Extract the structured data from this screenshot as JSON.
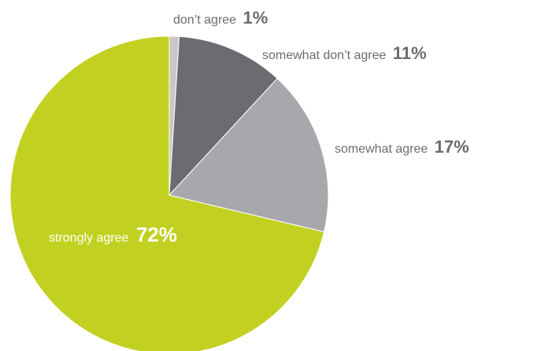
{
  "chart_data": {
    "type": "pie",
    "title": "",
    "slices": [
      {
        "label": "don’t agree",
        "percent_label": "1%",
        "value": 1,
        "color": "#c8c8c8"
      },
      {
        "label": "somewhat don’t agree",
        "percent_label": "11%",
        "value": 11,
        "color": "#6b6c70"
      },
      {
        "label": "somewhat agree",
        "percent_label": "17%",
        "value": 17,
        "color": "#a7a8ab"
      },
      {
        "label": "strongly agree",
        "percent_label": "72%",
        "value": 72,
        "color": "#c2d121"
      }
    ]
  },
  "colors": {
    "label_text": "#6b6c70",
    "inside_label_text": "#ffffff",
    "slice_border": "#ffffff"
  }
}
